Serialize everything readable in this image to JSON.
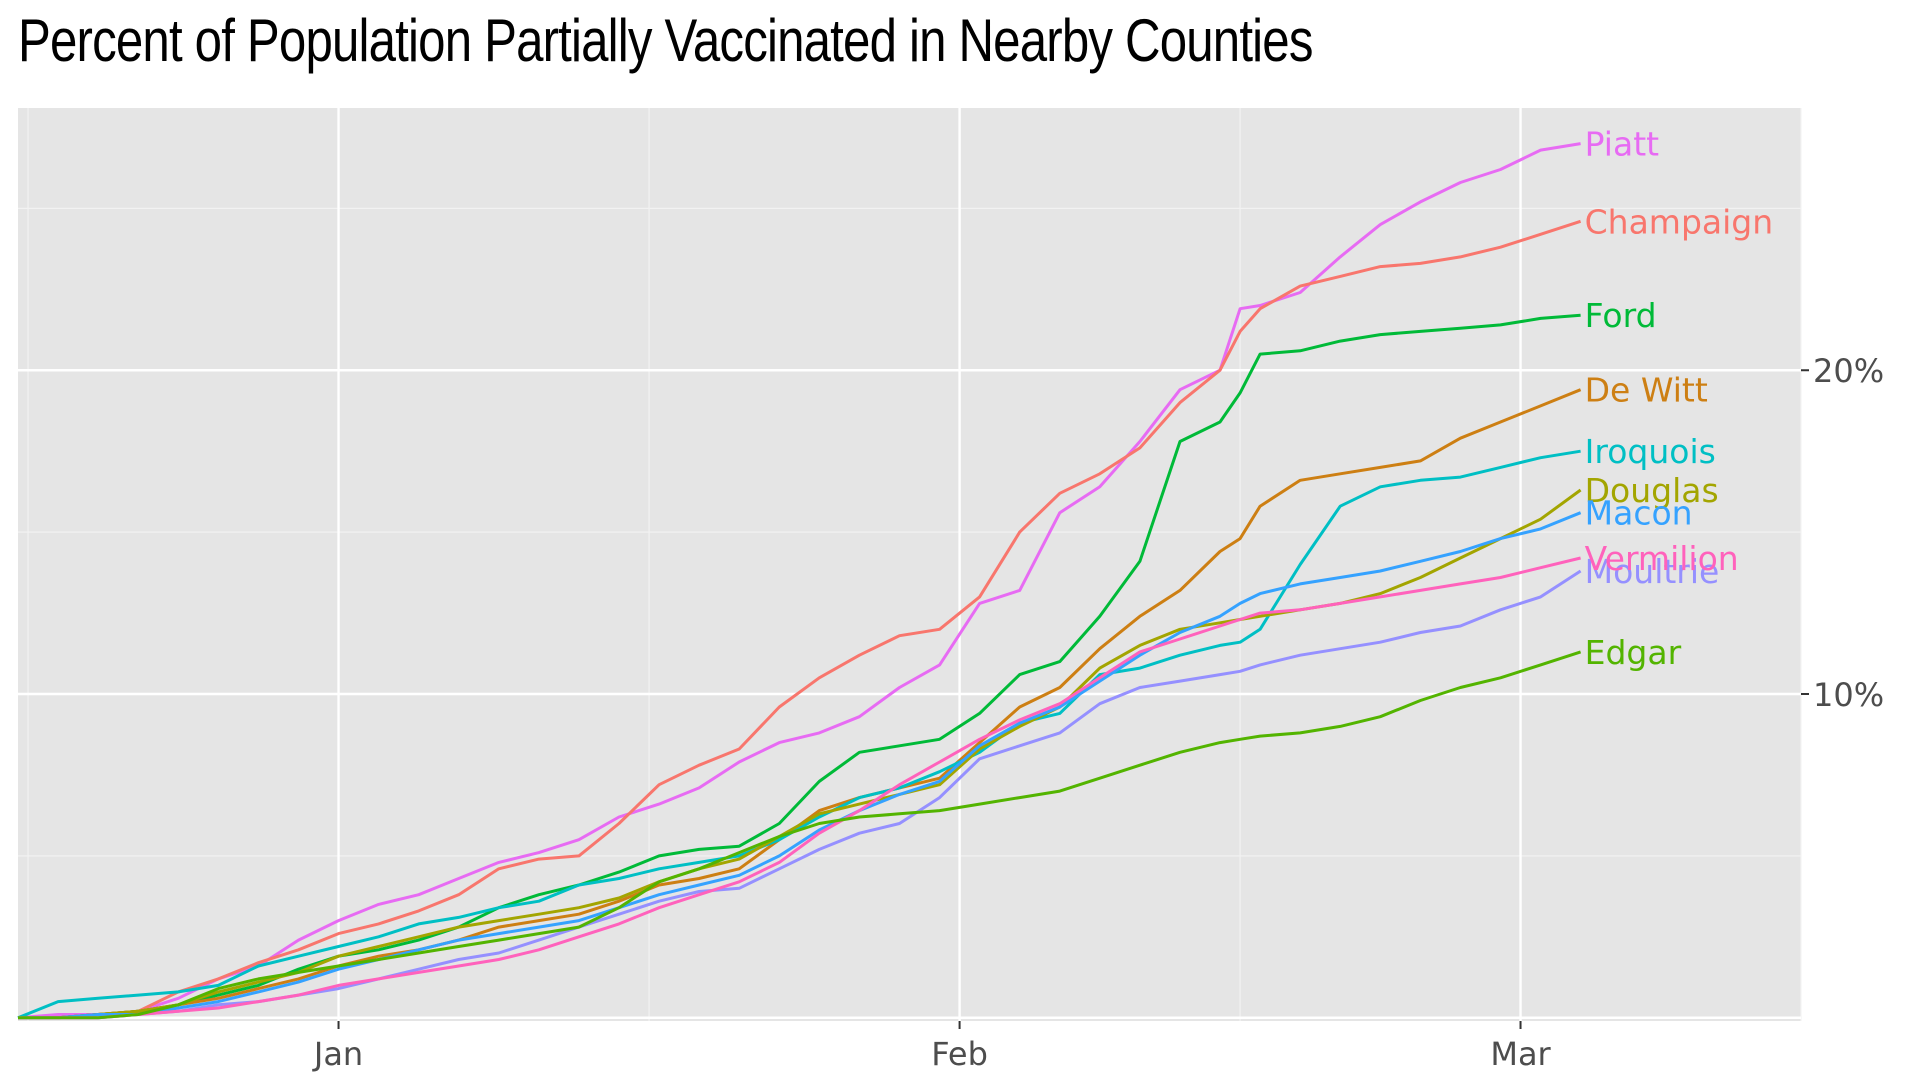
{
  "chart_data": {
    "type": "line",
    "title": "Percent of Population Partially Vaccinated in Nearby Counties",
    "xlabel": "",
    "ylabel": "",
    "x_ticks": [
      {
        "label": "Jan",
        "day": 10
      },
      {
        "label": "Feb",
        "day": 41
      },
      {
        "label": "Mar",
        "day": 69
      }
    ],
    "y_ticks": [
      {
        "label": "10%",
        "value": 10
      },
      {
        "label": "20%",
        "value": 20
      }
    ],
    "xlim": [
      -6,
      83
    ],
    "ylim": [
      -0.1,
      28.1
    ],
    "grid": true,
    "legend": "labels at line ends",
    "x": [
      -6,
      -4,
      -2,
      0,
      2,
      4,
      6,
      8,
      10,
      12,
      14,
      16,
      18,
      20,
      22,
      24,
      26,
      28,
      30,
      32,
      34,
      36,
      38,
      40,
      42,
      44,
      46,
      48,
      50,
      52,
      54,
      55,
      56,
      58,
      60,
      62,
      64,
      66,
      68,
      70,
      72
    ],
    "series": [
      {
        "name": "Piatt",
        "color": "#e76bf3",
        "values": [
          0,
          0.1,
          0.1,
          0.2,
          0.6,
          1.2,
          1.6,
          2.4,
          3.0,
          3.5,
          3.8,
          4.3,
          4.8,
          5.1,
          5.5,
          6.2,
          6.6,
          7.1,
          7.9,
          8.5,
          8.8,
          9.3,
          10.2,
          10.9,
          12.8,
          13.2,
          15.6,
          16.4,
          17.8,
          19.4,
          20.0,
          21.9,
          22.0,
          22.4,
          23.5,
          24.5,
          25.2,
          25.8,
          26.2,
          26.8,
          27.0
        ]
      },
      {
        "name": "Champaign",
        "color": "#f8766d",
        "values": [
          0,
          0,
          0.1,
          0.2,
          0.8,
          1.2,
          1.7,
          2.1,
          2.6,
          2.9,
          3.3,
          3.8,
          4.6,
          4.9,
          5.0,
          6.0,
          7.2,
          7.8,
          8.3,
          9.6,
          10.5,
          11.2,
          11.8,
          12.0,
          13.0,
          15.0,
          16.2,
          16.8,
          17.6,
          19.0,
          20.0,
          21.2,
          21.9,
          22.6,
          22.9,
          23.2,
          23.3,
          23.5,
          23.8,
          24.2,
          24.6
        ]
      },
      {
        "name": "Ford",
        "color": "#00ba38",
        "values": [
          0,
          0,
          0.1,
          0.2,
          0.4,
          0.7,
          1.0,
          1.5,
          1.9,
          2.1,
          2.4,
          2.8,
          3.4,
          3.8,
          4.1,
          4.5,
          5.0,
          5.2,
          5.3,
          6.0,
          7.3,
          8.2,
          8.4,
          8.6,
          9.4,
          10.6,
          11.0,
          12.4,
          14.1,
          17.8,
          18.4,
          19.3,
          20.5,
          20.6,
          20.9,
          21.1,
          21.2,
          21.3,
          21.4,
          21.6,
          21.7
        ]
      },
      {
        "name": "De Witt",
        "color": "#cd7f13",
        "values": [
          0,
          0,
          0.1,
          0.2,
          0.4,
          0.6,
          0.9,
          1.2,
          1.6,
          1.9,
          2.1,
          2.4,
          2.8,
          3.0,
          3.2,
          3.6,
          4.1,
          4.3,
          4.6,
          5.5,
          6.4,
          6.8,
          7.1,
          7.4,
          8.5,
          9.6,
          10.2,
          11.4,
          12.4,
          13.2,
          14.4,
          14.8,
          15.8,
          16.6,
          16.8,
          17.0,
          17.2,
          17.9,
          18.4,
          18.9,
          19.4
        ]
      },
      {
        "name": "Iroquois",
        "color": "#00bfc4",
        "values": [
          0,
          0.5,
          0.6,
          0.7,
          0.8,
          1.0,
          1.6,
          1.9,
          2.2,
          2.5,
          2.9,
          3.1,
          3.4,
          3.6,
          4.1,
          4.3,
          4.6,
          4.8,
          5.0,
          5.5,
          6.2,
          6.8,
          7.1,
          7.6,
          8.2,
          9.1,
          9.4,
          10.6,
          10.8,
          11.2,
          11.5,
          11.6,
          12.0,
          14.0,
          15.8,
          16.4,
          16.6,
          16.7,
          17.0,
          17.3,
          17.5
        ]
      },
      {
        "name": "Douglas",
        "color": "#a3a500",
        "values": [
          0,
          0,
          0.1,
          0.2,
          0.4,
          0.8,
          1.1,
          1.4,
          1.9,
          2.2,
          2.5,
          2.8,
          3.0,
          3.2,
          3.4,
          3.7,
          4.2,
          4.6,
          4.9,
          5.6,
          6.3,
          6.6,
          6.9,
          7.2,
          8.3,
          9.0,
          9.6,
          10.8,
          11.5,
          12.0,
          12.2,
          12.3,
          12.4,
          12.6,
          12.8,
          13.1,
          13.6,
          14.2,
          14.8,
          15.4,
          16.3
        ]
      },
      {
        "name": "Macon",
        "color": "#35a2ff",
        "values": [
          0,
          0,
          0.1,
          0.1,
          0.3,
          0.5,
          0.8,
          1.1,
          1.5,
          1.8,
          2.1,
          2.4,
          2.6,
          2.8,
          3.0,
          3.4,
          3.8,
          4.1,
          4.4,
          5.0,
          5.8,
          6.4,
          6.9,
          7.3,
          8.4,
          9.1,
          9.6,
          10.4,
          11.2,
          11.9,
          12.4,
          12.8,
          13.1,
          13.4,
          13.6,
          13.8,
          14.1,
          14.4,
          14.8,
          15.1,
          15.6
        ]
      },
      {
        "name": "Moultrie",
        "color": "#9590ff",
        "values": [
          0,
          0,
          0,
          0.1,
          0.2,
          0.4,
          0.5,
          0.7,
          0.9,
          1.2,
          1.5,
          1.8,
          2.0,
          2.4,
          2.8,
          3.2,
          3.6,
          3.9,
          4.0,
          4.6,
          5.2,
          5.7,
          6.0,
          6.8,
          8.0,
          8.4,
          8.8,
          9.7,
          10.2,
          10.4,
          10.6,
          10.7,
          10.9,
          11.2,
          11.4,
          11.6,
          11.9,
          12.1,
          12.6,
          13.0,
          13.8
        ]
      },
      {
        "name": "Vermilion",
        "color": "#ff62bc",
        "values": [
          0,
          0,
          0,
          0.1,
          0.2,
          0.3,
          0.5,
          0.7,
          1.0,
          1.2,
          1.4,
          1.6,
          1.8,
          2.1,
          2.5,
          2.9,
          3.4,
          3.8,
          4.2,
          4.8,
          5.7,
          6.4,
          7.2,
          7.9,
          8.6,
          9.2,
          9.7,
          10.5,
          11.3,
          11.7,
          12.1,
          12.3,
          12.5,
          12.6,
          12.8,
          13.0,
          13.2,
          13.4,
          13.6,
          13.9,
          14.2
        ]
      },
      {
        "name": "Edgar",
        "color": "#53b400",
        "values": [
          0,
          0,
          0,
          0.1,
          0.4,
          0.9,
          1.2,
          1.4,
          1.6,
          1.8,
          2.0,
          2.2,
          2.4,
          2.6,
          2.8,
          3.4,
          4.2,
          4.6,
          5.1,
          5.6,
          6.0,
          6.2,
          6.3,
          6.4,
          6.6,
          6.8,
          7.0,
          7.4,
          7.8,
          8.2,
          8.5,
          8.6,
          8.7,
          8.8,
          9.0,
          9.3,
          9.8,
          10.2,
          10.5,
          10.9,
          11.3
        ]
      }
    ]
  }
}
